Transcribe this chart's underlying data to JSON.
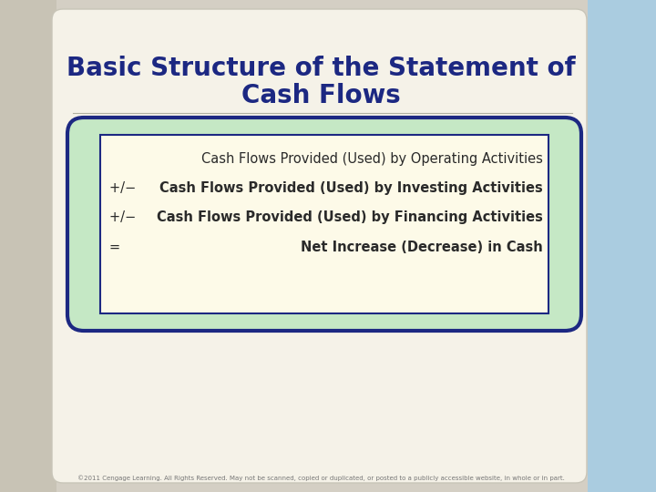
{
  "title_line1": "Basic Structure of the Statement of",
  "title_line2": "Cash Flows",
  "title_color": "#1c2882",
  "title_fontsize": 20,
  "slide_bg": "#d4cfc4",
  "main_bg": "#f5f2e8",
  "right_panel_color": "#aacce0",
  "footer_text": "©2011 Cengage Learning. All Rights Reserved. May not be scanned, copied or duplicated, or posted to a publicly accessible website, in whole or in part.",
  "outer_box_color": "#1c2882",
  "outer_box_fill": "#c5e8c5",
  "inner_box_color": "#1c2882",
  "inner_box_fill": "#fdfae8",
  "line1": "Cash Flows Provided (Used) by Operating Activities",
  "line2_prefix": "+/−  ",
  "line2": "Cash Flows Provided (Used) by Investing Activities",
  "line3_prefix": "+/−  ",
  "line3": "Cash Flows Provided (Used) by Financing Activities",
  "line4_prefix": "= ",
  "line4": "Net Increase (Decrease) in Cash",
  "text_color": "#2a2a2a",
  "content_fontsize": 10.5,
  "footer_fontsize": 5
}
